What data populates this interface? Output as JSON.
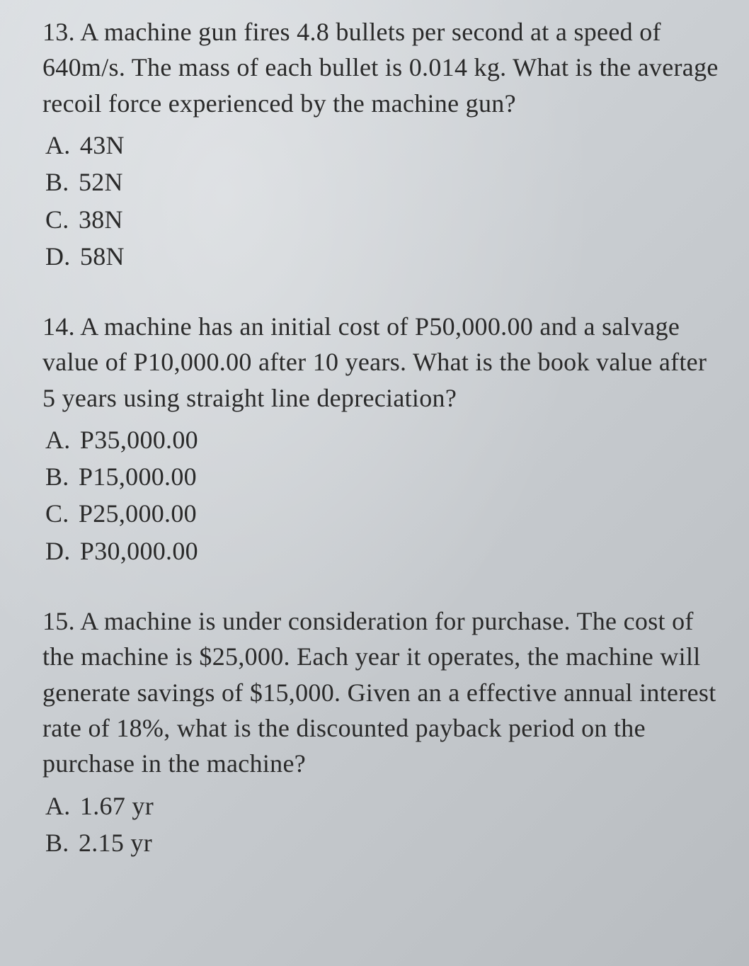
{
  "questions": [
    {
      "number": "13.",
      "text": "A machine gun fires 4.8 bullets per second at a speed of 640m/s. The mass of each bullet is 0.014 kg. What is the average recoil force experienced by the machine gun?",
      "options": [
        {
          "label": "A.",
          "text": "43N"
        },
        {
          "label": "B.",
          "text": "52N"
        },
        {
          "label": "C.",
          "text": "38N"
        },
        {
          "label": "D.",
          "text": "58N"
        }
      ]
    },
    {
      "number": "14.",
      "text": "A machine has an initial cost of P50,000.00 and a salvage value of P10,000.00 after 10 years. What is the book value after 5 years using straight line depreciation?",
      "options": [
        {
          "label": "A.",
          "text": "P35,000.00"
        },
        {
          "label": "B.",
          "text": "P15,000.00"
        },
        {
          "label": "C.",
          "text": "P25,000.00"
        },
        {
          "label": "D.",
          "text": "P30,000.00"
        }
      ]
    },
    {
      "number": "15.",
      "text": "A machine is under consideration for purchase. The cost of the machine is $25,000. Each year it operates, the machine will generate savings of $15,000. Given an a effective annual interest rate of 18%, what is the discounted payback period on the purchase in the machine?",
      "options": [
        {
          "label": "A.",
          "text": "1.67 yr"
        },
        {
          "label": "B.",
          "text": "2.15 yr"
        }
      ]
    }
  ],
  "styling": {
    "background_gradient_start": "#d8dce0",
    "background_gradient_end": "#b8bcc0",
    "text_color": "#2a2a2a",
    "font_family": "Georgia, Times New Roman, serif",
    "question_fontsize": 36,
    "option_fontsize": 36,
    "line_height": 1.4
  }
}
